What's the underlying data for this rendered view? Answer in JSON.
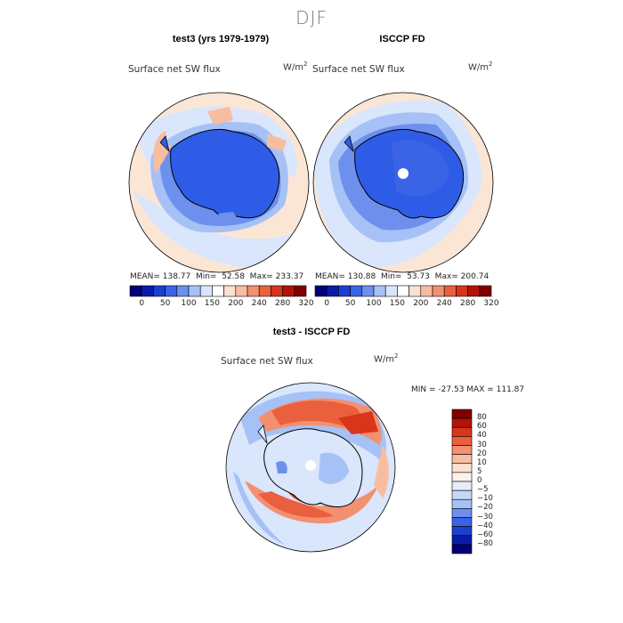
{
  "figure": {
    "season": "DJF",
    "panels": {
      "model": {
        "title": "test3 (yrs 1979-1979)",
        "variable": "Surface net SW flux",
        "units_base": "W/m",
        "units_exp": "2",
        "stats": "MEAN= 138.77  Min=  52.58  Max= 233.37"
      },
      "obs": {
        "title": "ISCCP FD",
        "variable": "Surface net SW flux",
        "units_base": "W/m",
        "units_exp": "2",
        "stats": "MEAN= 130.88  Min=  53.73  Max= 200.74"
      },
      "diff": {
        "title": "test3 - ISCCP FD",
        "variable": "Surface net SW flux",
        "units_base": "W/m",
        "units_exp": "2",
        "stats": "MIN = -27.53 MAX = 111.87"
      }
    },
    "colorbar_abs": {
      "labels": [
        "0",
        "50",
        "100",
        "150",
        "200",
        "240",
        "280",
        "320"
      ],
      "colors": [
        "#00007a",
        "#0a1ba8",
        "#1c3fd0",
        "#3a63e6",
        "#6d90ee",
        "#a6c1f5",
        "#d9e6fb",
        "#ffffff",
        "#fbe1cf",
        "#f8bd9f",
        "#f29070",
        "#ea5f3e",
        "#d8351a",
        "#b31308",
        "#800000"
      ]
    },
    "colorbar_diff": {
      "labels": [
        "80",
        "60",
        "40",
        "30",
        "20",
        "10",
        "5",
        "0",
        "−5",
        "−10",
        "−20",
        "−30",
        "−40",
        "−60",
        "−80"
      ],
      "colors": [
        "#800000",
        "#b31308",
        "#d8351a",
        "#ea5f3e",
        "#f29070",
        "#f8bd9f",
        "#fbe1cf",
        "#fdf2ea",
        "#e6eefb",
        "#c6d8f7",
        "#a6c1f5",
        "#6d90ee",
        "#3a63e6",
        "#1c3fd0",
        "#0a1ba8",
        "#00007a"
      ]
    }
  }
}
